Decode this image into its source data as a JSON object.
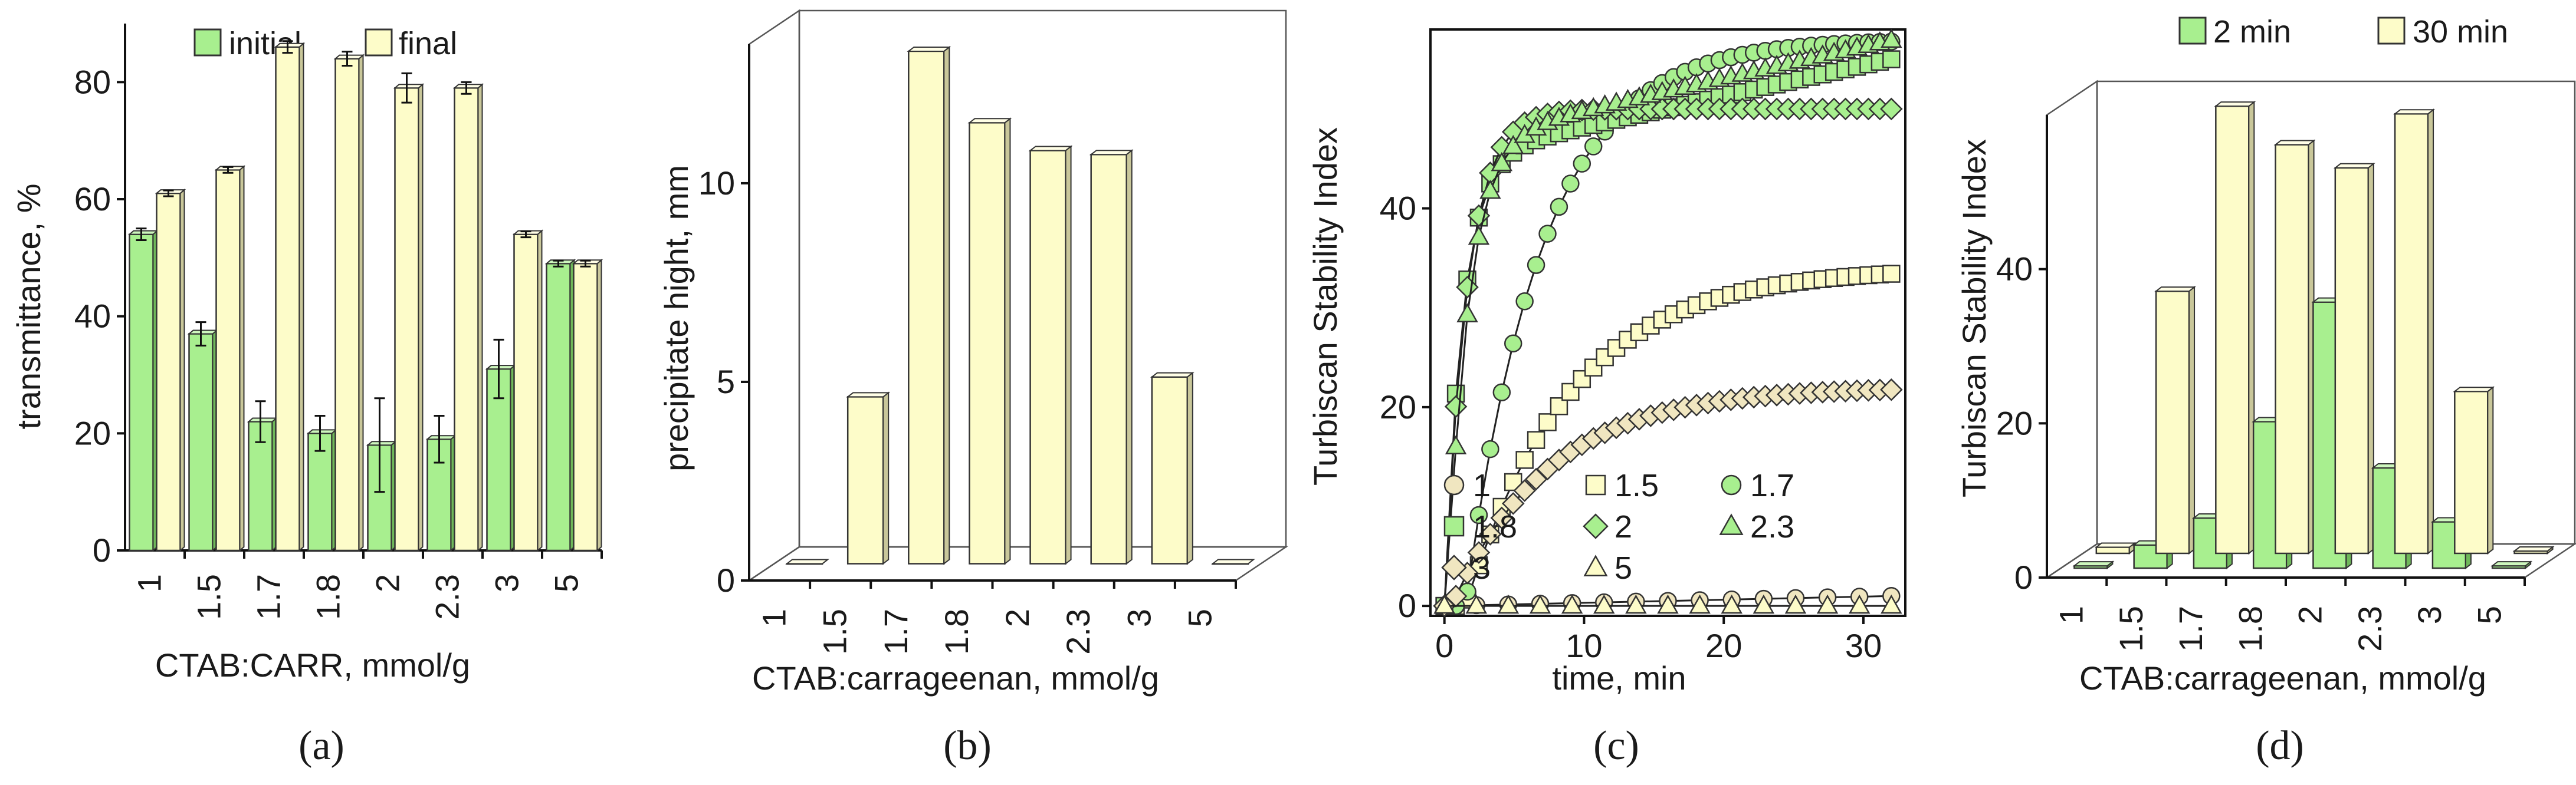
{
  "colors": {
    "green": "#a8ef8f",
    "green_side": "#6fb85a",
    "green_top": "#cdf7bd",
    "yellow": "#fdfcc9",
    "yellow_side": "#c9c79a",
    "yellow_top": "#fffee6",
    "marker_green": "#a8ef8f",
    "marker_yellow": "#fdfcc9",
    "marker_tan": "#f0e6c0",
    "outline": "#333333"
  },
  "chart_data": [
    {
      "panel": "(a)",
      "type": "bar",
      "xlabel": "CTAB:CARR, mmol/g",
      "ylabel": "transmittance, %",
      "ylim": [
        0,
        90
      ],
      "yticks": [
        "0",
        "20",
        "40",
        "60",
        "80"
      ],
      "categories": [
        "1",
        "1.5",
        "1.7",
        "1.8",
        "2",
        "2.3",
        "3",
        "5"
      ],
      "legend_position": "top",
      "series": [
        {
          "name": "initial",
          "color": "green",
          "values": [
            54,
            37,
            22,
            20,
            18,
            19,
            31,
            49
          ],
          "errors": [
            1,
            2,
            3.5,
            3,
            8,
            4,
            5,
            0.5
          ]
        },
        {
          "name": "final",
          "color": "yellow",
          "values": [
            61,
            65,
            86,
            84,
            79,
            79,
            54,
            49
          ],
          "errors": [
            0.5,
            0.5,
            1,
            1.2,
            2.5,
            1,
            0.5,
            0.5
          ]
        }
      ]
    },
    {
      "panel": "(b)",
      "type": "bar",
      "xlabel": "CTAB:carrageenan, mmol/g",
      "ylabel": "precipitate hight, mm",
      "ylim": [
        0,
        13.5
      ],
      "yticks": [
        "0",
        "5",
        "10"
      ],
      "categories": [
        "1",
        "1.5",
        "1.7",
        "1.8",
        "2",
        "2.3",
        "3",
        "5"
      ],
      "series": [
        {
          "name": "",
          "color": "yellow",
          "values": [
            0,
            4.2,
            12.9,
            11.1,
            10.4,
            10.3,
            4.7,
            0
          ]
        }
      ]
    },
    {
      "panel": "(c)",
      "type": "scatter",
      "xlabel": "time, min",
      "ylabel": "Turbiscan Stability Index",
      "xlim": [
        -1,
        33
      ],
      "ylim": [
        -1,
        58
      ],
      "xticks": [
        "0",
        "10",
        "20",
        "30"
      ],
      "yticks": [
        "0",
        "20",
        "40"
      ],
      "legend_position": "bottom-right",
      "series": [
        {
          "name": "1",
          "marker": "circle",
          "color": "marker_tan",
          "model": "linear",
          "final": 1,
          "tau": 1,
          "delay": 0,
          "npts": 15
        },
        {
          "name": "1.5",
          "marker": "square",
          "color": "marker_yellow",
          "model": "sat",
          "final": 34,
          "tau": 7.5,
          "delay": 1.5,
          "npts": 40
        },
        {
          "name": "1.7",
          "marker": "circle",
          "color": "marker_green",
          "model": "sat",
          "final": 57,
          "tau": 5.5,
          "delay": 1.5,
          "npts": 40
        },
        {
          "name": "1.8",
          "marker": "square",
          "color": "marker_green",
          "model": "sat2",
          "final": 55,
          "tau": 1.3,
          "delay": 0,
          "npts": 40
        },
        {
          "name": "2",
          "marker": "diamond",
          "color": "marker_green",
          "model": "sat",
          "final": 50,
          "tau": 1.6,
          "delay": 0,
          "npts": 40
        },
        {
          "name": "2.3",
          "marker": "triangle",
          "color": "marker_green",
          "model": "sat2",
          "final": 57,
          "tau": 1.5,
          "delay": 0.2,
          "npts": 40
        },
        {
          "name": "3",
          "marker": "diamond",
          "color": "marker_tan",
          "model": "sat",
          "final": 22,
          "tau": 7,
          "delay": 0.5,
          "npts": 40
        },
        {
          "name": "5",
          "marker": "triangle",
          "color": "marker_yellow",
          "model": "flat",
          "final": 0,
          "tau": 1,
          "delay": 0,
          "npts": 15
        }
      ]
    },
    {
      "panel": "(d)",
      "type": "bar",
      "xlabel": "CTAB:carrageenan, mmol/g",
      "ylabel": "Turbiscan Stability Index",
      "ylim": [
        0,
        60
      ],
      "yticks": [
        "0",
        "20",
        "40"
      ],
      "categories": [
        "1",
        "1.5",
        "1.7",
        "1.8",
        "2",
        "2.3",
        "3",
        "5"
      ],
      "legend_position": "top",
      "series": [
        {
          "name": "2 min",
          "color": "green",
          "values": [
            0.3,
            3,
            6.5,
            19,
            34.5,
            13,
            6,
            0.3
          ]
        },
        {
          "name": "30 min",
          "color": "yellow",
          "values": [
            0.8,
            34,
            58,
            53,
            50,
            57,
            21,
            0.3
          ]
        }
      ]
    }
  ]
}
